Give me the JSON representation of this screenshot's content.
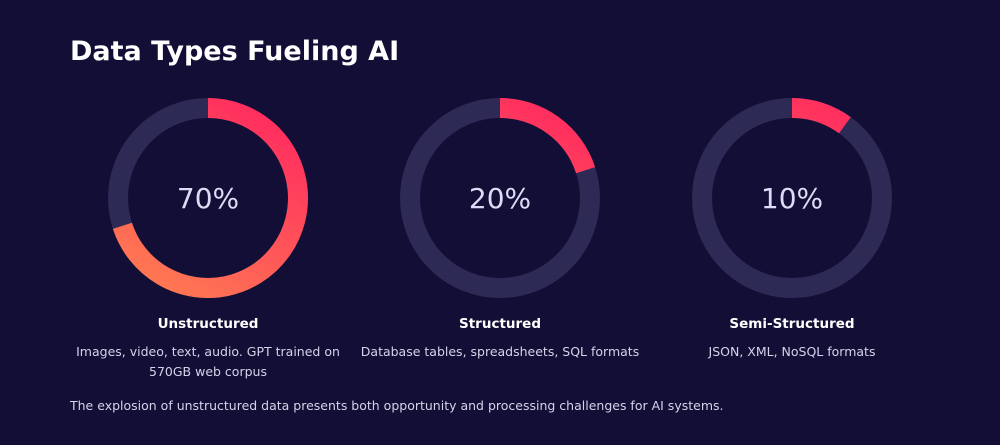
{
  "title": "Data Types Fueling AI",
  "chart_data": [
    {
      "type": "donut",
      "title": "Unstructured",
      "subtitle": "Images, video, text, audio. GPT trained on 570GB web corpus",
      "values": [
        70
      ],
      "value_labels": [
        "70%"
      ],
      "gradient": [
        "#ff2d5f",
        "#ff7a52"
      ],
      "track_color": "#2e2a56"
    },
    {
      "type": "donut",
      "title": "Structured",
      "subtitle": "Database tables, spreadsheets, SQL formats",
      "values": [
        20
      ],
      "value_labels": [
        "20%"
      ],
      "gradient": [
        "#ff2d5f",
        "#ff7a52"
      ],
      "track_color": "#2e2a56"
    },
    {
      "type": "donut",
      "title": "Semi-Structured",
      "subtitle": "JSON, XML, NoSQL formats",
      "values": [
        10
      ],
      "value_labels": [
        "10%"
      ],
      "gradient": [
        "#ff2d5f",
        "#ff7a52"
      ],
      "track_color": "#2e2a56"
    }
  ],
  "footnote": "The explosion of unstructured data presents both opportunity and processing challenges for AI systems."
}
